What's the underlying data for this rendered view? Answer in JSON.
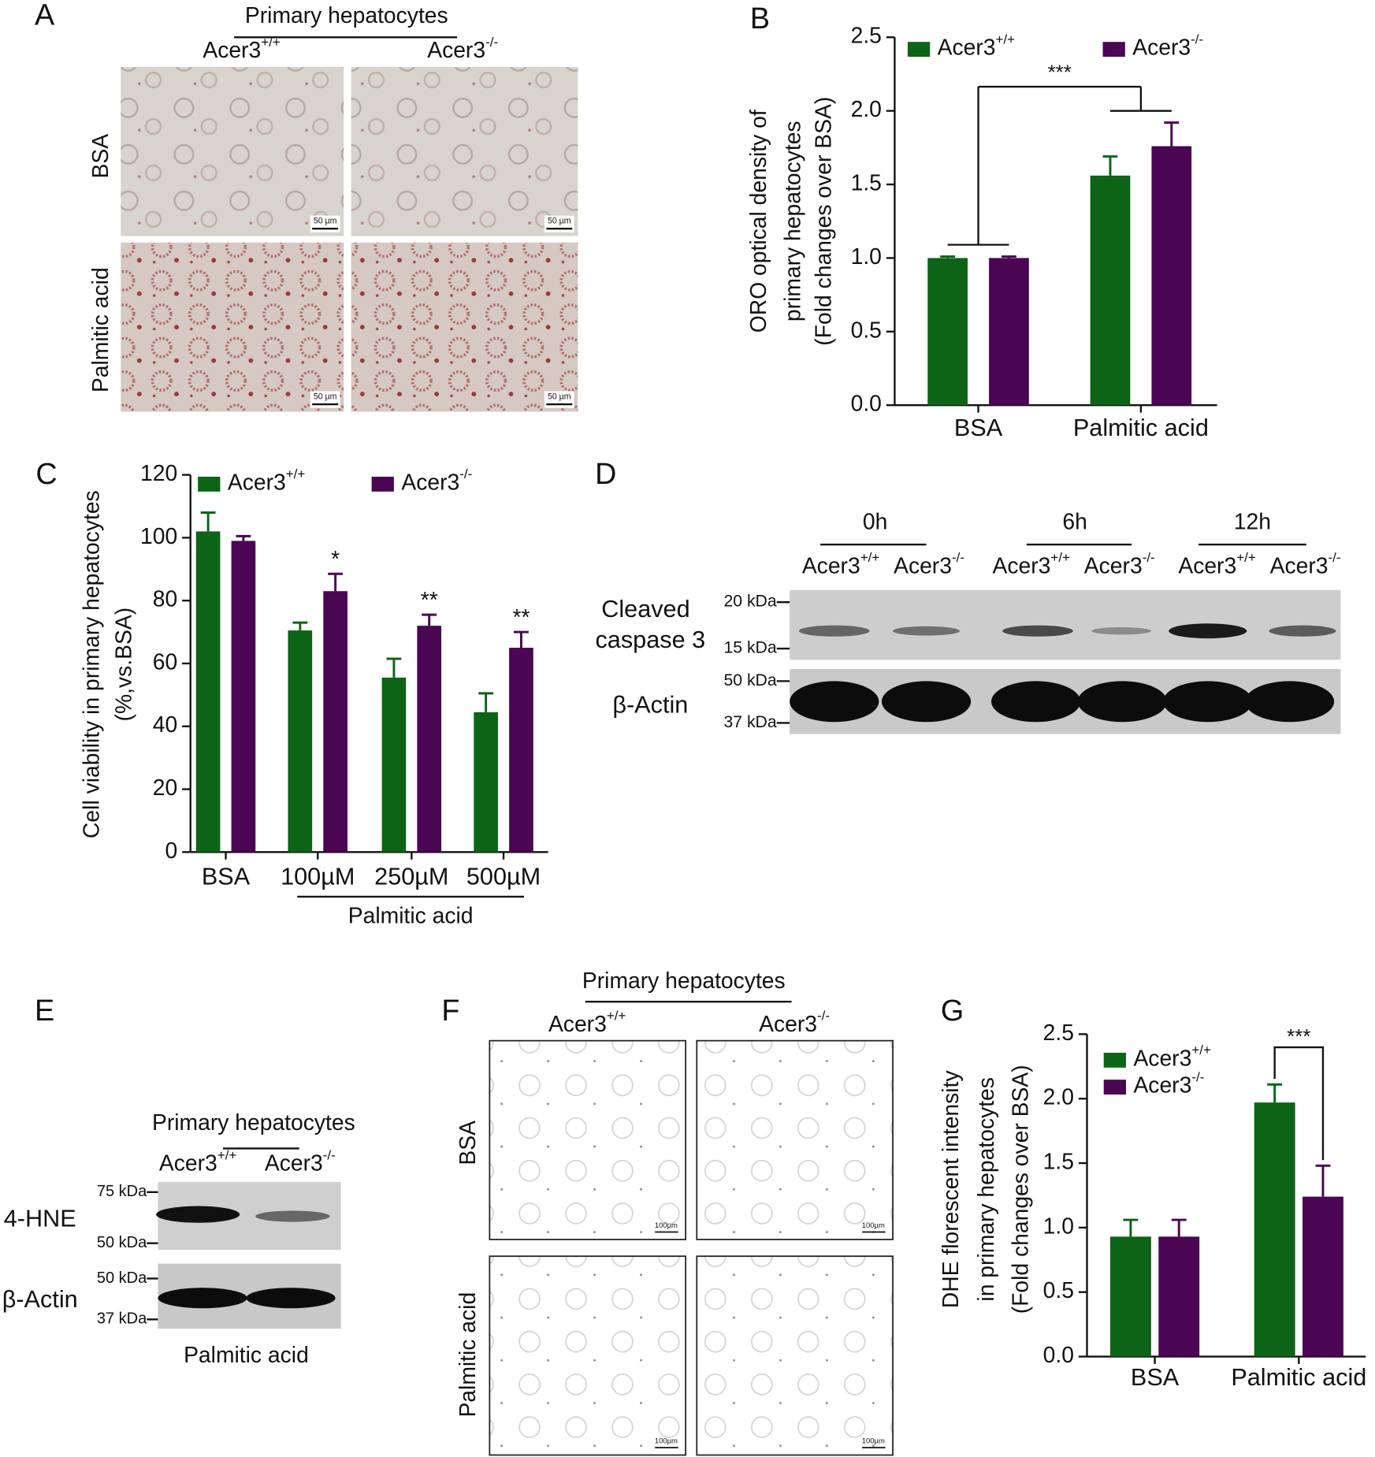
{
  "panels": {
    "A": {
      "label": "A",
      "title": "Primary hepatocytes",
      "columns": [
        {
          "text": "Acer3",
          "sup": "+/+"
        },
        {
          "text": "Acer3",
          "sup": "-/-"
        }
      ],
      "rows": [
        "BSA",
        "Palmitic acid"
      ],
      "scale_bar": "50 µm"
    },
    "B": {
      "label": "B"
    },
    "C": {
      "label": "C"
    },
    "D": {
      "label": "D",
      "timepoints": [
        "0h",
        "6h",
        "12h"
      ],
      "lanes": [
        {
          "text": "Acer3",
          "sup": "+/+"
        },
        {
          "text": "Acer3",
          "sup": "-/-"
        },
        {
          "text": "Acer3",
          "sup": "+/+"
        },
        {
          "text": "Acer3",
          "sup": "-/-"
        },
        {
          "text": "Acer3",
          "sup": "+/+"
        },
        {
          "text": "Acer3",
          "sup": "-/-"
        }
      ],
      "rows": [
        [
          "Cleaved",
          "caspase 3"
        ],
        [
          "β-Actin"
        ]
      ],
      "markers": [
        "20 kDa",
        "15 kDa",
        "50 kDa",
        "37 kDa"
      ]
    },
    "E": {
      "label": "E",
      "title": "Primary hepatocytes",
      "lanes": [
        {
          "text": "Acer3",
          "sup": "+/+"
        },
        {
          "text": "Acer3",
          "sup": "-/-"
        }
      ],
      "rows": [
        "4-HNE",
        "β-Actin"
      ],
      "markers": [
        "75 kDa",
        "50 kDa",
        "50 kDa",
        "37 kDa"
      ],
      "footer": "Palmitic acid"
    },
    "F": {
      "label": "F",
      "title": "Primary hepatocytes",
      "columns": [
        {
          "text": "Acer3",
          "sup": "+/+"
        },
        {
          "text": "Acer3",
          "sup": "-/-"
        }
      ],
      "rows": [
        "BSA",
        "Palmitic acid"
      ],
      "scale_bar": "100µm"
    },
    "G": {
      "label": "G"
    }
  },
  "chart_data": [
    {
      "type": "bar",
      "ylabel": [
        "ORO optical density of",
        "primary hepatocytes",
        "(Fold changes over BSA)"
      ],
      "categories": [
        "BSA",
        "Palmitic acid"
      ],
      "series": [
        {
          "name": {
            "text": "Acer3",
            "sup": "+/+"
          },
          "color": "#0d6316",
          "values": [
            1.0,
            1.56
          ],
          "errors": [
            0.01,
            0.13
          ]
        },
        {
          "name": {
            "text": "Acer3",
            "sup": "-/-"
          },
          "color": "#4a0652",
          "values": [
            1.0,
            1.76
          ],
          "errors": [
            0.01,
            0.16
          ]
        }
      ],
      "ylim": [
        0,
        2.5
      ],
      "yticks": [
        {
          "value": 0,
          "label": "0.0"
        },
        0.5,
        {
          "value": 1,
          "label": "1.0"
        },
        1.5,
        {
          "value": 2,
          "label": "2.0"
        },
        2.5
      ],
      "significance": {
        "label": "***",
        "comparison": "groups"
      }
    },
    {
      "type": "bar",
      "ylabel": [
        "Cell viability in primary hepatocytes",
        "(%,vs.BSA)"
      ],
      "categories": [
        "BSA",
        "100µM",
        "250µM",
        "500µM"
      ],
      "group_label": "Palmitic acid",
      "series": [
        {
          "name": {
            "text": "Acer3",
            "sup": "+/+"
          },
          "color": "#0d6316",
          "values": [
            102,
            70.5,
            55.5,
            44.5
          ],
          "errors": [
            6,
            2.5,
            6,
            6
          ]
        },
        {
          "name": {
            "text": "Acer3",
            "sup": "-/-"
          },
          "color": "#4a0652",
          "values": [
            99,
            83,
            72,
            65
          ],
          "errors": [
            1.5,
            5.5,
            3.5,
            5
          ]
        }
      ],
      "ylim": [
        0,
        120
      ],
      "yticks": [
        0,
        20,
        40,
        60,
        80,
        100,
        120
      ],
      "annotations": [
        null,
        "*",
        "**",
        "**"
      ]
    },
    {
      "type": "bar",
      "ylabel": [
        "DHE florescent intensity",
        "in primary hepatocytes",
        "(Fold changes over BSA)"
      ],
      "categories": [
        "BSA",
        "Palmitic acid"
      ],
      "series": [
        {
          "name": {
            "text": "Acer3",
            "sup": "+/+"
          },
          "color": "#0d6316",
          "values": [
            0.93,
            1.97
          ],
          "errors": [
            0.13,
            0.14
          ]
        },
        {
          "name": {
            "text": "Acer3",
            "sup": "-/-"
          },
          "color": "#4a0652",
          "values": [
            0.93,
            1.24
          ],
          "errors": [
            0.13,
            0.24
          ]
        }
      ],
      "ylim": [
        0,
        2.5
      ],
      "yticks": [
        {
          "value": 0,
          "label": "0.0"
        },
        0.5,
        {
          "value": 1,
          "label": "1.0"
        },
        1.5,
        {
          "value": 2,
          "label": "2.0"
        },
        2.5
      ],
      "significance": {
        "label": "***",
        "comparison": "series"
      }
    }
  ]
}
